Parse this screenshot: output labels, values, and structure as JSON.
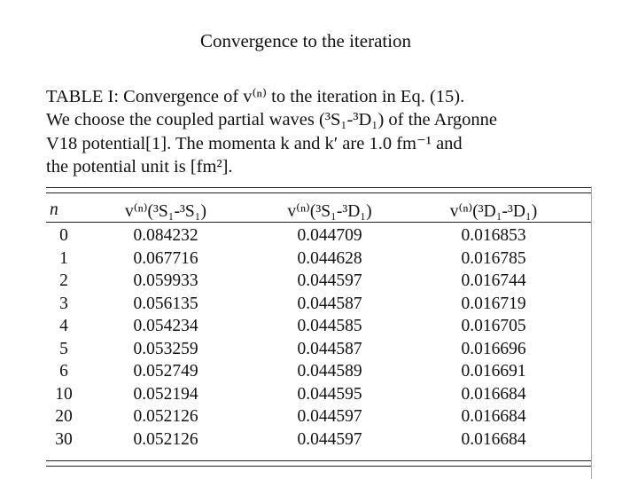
{
  "header": {
    "title": "Convergence to the iteration"
  },
  "caption": {
    "lines": [
      "TABLE I: Convergence of v⁽ⁿ⁾ to the iteration in Eq. (15).",
      "We choose the coupled partial waves (³S₁-³D₁) of the Argonne",
      "V18 potential[1].  The momenta k and k′ are 1.0 fm⁻¹ and",
      "the potential unit is [fm²]."
    ]
  },
  "table": {
    "columns": [
      "n",
      "v⁽ⁿ⁾(³S₁-³S₁)",
      "v⁽ⁿ⁾(³S₁-³D₁)",
      "v⁽ⁿ⁾(³D₁-³D₁)"
    ],
    "rows": [
      [
        "0",
        "0.084232",
        "0.044709",
        "0.016853"
      ],
      [
        "1",
        "0.067716",
        "0.044628",
        "0.016785"
      ],
      [
        "2",
        "0.059933",
        "0.044597",
        "0.016744"
      ],
      [
        "3",
        "0.056135",
        "0.044587",
        "0.016719"
      ],
      [
        "4",
        "0.054234",
        "0.044585",
        "0.016705"
      ],
      [
        "5",
        "0.053259",
        "0.044587",
        "0.016696"
      ],
      [
        "6",
        "0.052749",
        "0.044589",
        "0.016691"
      ],
      [
        "10",
        "0.052194",
        "0.044595",
        "0.016684"
      ],
      [
        "20",
        "0.052126",
        "0.044597",
        "0.016684"
      ],
      [
        "30",
        "0.052126",
        "0.044597",
        "0.016684"
      ]
    ]
  }
}
